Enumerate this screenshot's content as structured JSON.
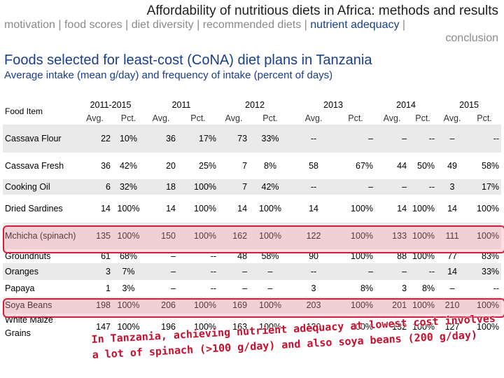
{
  "slide_title": "Affordability of nutritious diets in Africa: methods and results",
  "nav": {
    "line1_before": "motivation | food scores | diet diversity | recommended diets | ",
    "active": "nutrient adequacy",
    "line1_after": " |",
    "line2": "conclusion"
  },
  "heading": "Foods selected for least-cost (CoNA) diet plans in Tanzania",
  "subheading": "Average intake (mean g/day) and frequency of intake (percent of days)",
  "table": {
    "food_header": "Food Item",
    "years": [
      "2011-2015",
      "2011",
      "2012",
      "2013",
      "2014",
      "2015"
    ],
    "sub_headers": [
      "Avg.",
      "Pct.",
      "Avg.",
      "Pct.",
      "Avg.",
      "Pct.",
      "Avg.",
      "Pct.",
      "Avg.",
      "Pct.",
      "Avg.",
      "Pct."
    ],
    "rows": [
      {
        "food": "Cassava Flour",
        "vals": [
          "22",
          "10%",
          "36",
          "17%",
          "73",
          "33%",
          "--",
          "–",
          "–",
          "--",
          "–",
          "--"
        ]
      },
      {
        "food": "Cassava Fresh",
        "vals": [
          "36",
          "42%",
          "20",
          "25%",
          "7",
          "8%",
          "58",
          "67%",
          "44",
          "50%",
          "49",
          "58%"
        ]
      },
      {
        "food": "Cooking Oil",
        "vals": [
          "6",
          "32%",
          "18",
          "100%",
          "7",
          "42%",
          "--",
          "–",
          "–",
          "--",
          "3",
          "17%"
        ]
      },
      {
        "food": "Dried Sardines",
        "vals": [
          "14",
          "100%",
          "14",
          "100%",
          "14",
          "100%",
          "14",
          "100%",
          "14",
          "100%",
          "14",
          "100%"
        ]
      },
      {
        "food": "Mchicha (spinach)",
        "vals": [
          "135",
          "100%",
          "150",
          "100%",
          "162",
          "100%",
          "122",
          "100%",
          "133",
          "100%",
          "111",
          "100%"
        ]
      },
      {
        "food": "Groundnuts",
        "vals": [
          "61",
          "68%",
          "–",
          "--",
          "48",
          "58%",
          "90",
          "100%",
          "88",
          "100%",
          "77",
          "83%"
        ]
      },
      {
        "food": "Oranges",
        "vals": [
          "3",
          "7%",
          "–",
          "--",
          "–",
          "–",
          "--",
          "–",
          "–",
          "--",
          "14",
          "33%"
        ]
      },
      {
        "food": "Papaya",
        "vals": [
          "1",
          "3%",
          "–",
          "--",
          "–",
          "–",
          "3",
          "8%",
          "3",
          "8%",
          "–",
          "--"
        ]
      },
      {
        "food": "Soya Beans",
        "vals": [
          "198",
          "100%",
          "206",
          "100%",
          "169",
          "100%",
          "203",
          "100%",
          "201",
          "100%",
          "210",
          "100%"
        ]
      },
      {
        "food": "White Maize Grains",
        "vals": [
          "147",
          "100%",
          "196",
          "100%",
          "163",
          "100%",
          "120",
          "100%",
          "132",
          "100%",
          "127",
          "100%"
        ]
      }
    ]
  },
  "conclusion": {
    "line1": "In Tanzania, achieving nutrient adequacy at lowest cost involves",
    "line2": "a lot of spinach (>100 g/day) and also soya beans (200 g/day)"
  }
}
